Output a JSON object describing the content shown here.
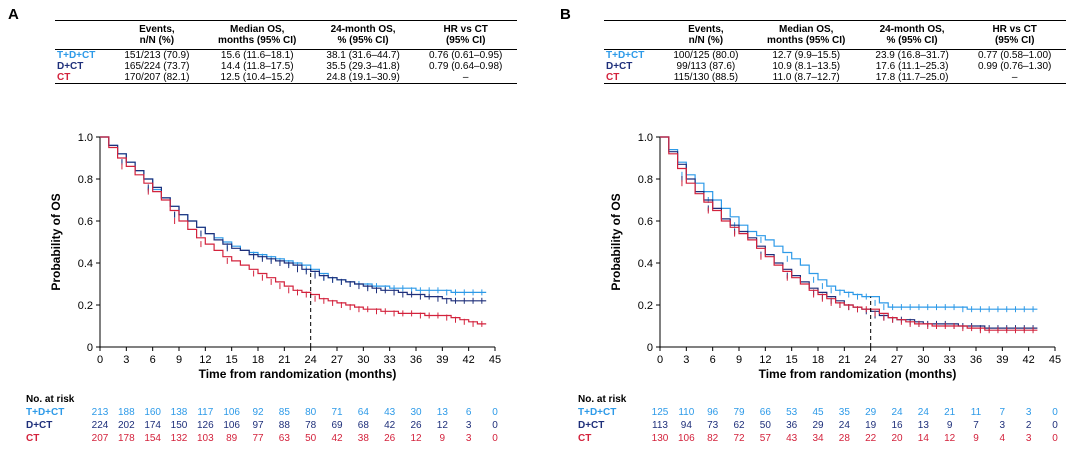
{
  "colors": {
    "tdct": "#2d9ae8",
    "dct": "#1e2f7a",
    "ct": "#d3223c"
  },
  "headers": [
    "",
    "Events,\nn/N (%)",
    "Median OS,\nmonths (95% CI)",
    "24-month OS,\n% (95% CI)",
    "HR vs CT\n(95% CI)"
  ],
  "risk_title": "No. at risk",
  "chart_data": [
    {
      "panel": "A",
      "type": "line",
      "xlabel": "Time from randomization (months)",
      "ylabel": "Probability of OS",
      "xlim": [
        0,
        45
      ],
      "ylim": [
        0,
        1.0
      ],
      "xticks": [
        0,
        3,
        6,
        9,
        12,
        15,
        18,
        21,
        24,
        27,
        30,
        33,
        36,
        39,
        42,
        45
      ],
      "yticks": [
        0,
        0.2,
        0.4,
        0.6,
        0.8,
        1.0
      ],
      "ytick_labels": [
        "0",
        "0.2",
        "0.4",
        "0.6",
        "0.8",
        "1.0"
      ],
      "reference_line_x": 24,
      "table": [
        {
          "arm": "T+D+CT",
          "color": "tdct",
          "events": "151/213 (70.9)",
          "median": "15.6 (11.6–18.1)",
          "os24": "38.1 (31.6–44.7)",
          "hr": "0.76 (0.61–0.95)"
        },
        {
          "arm": "D+CT",
          "color": "dct",
          "events": "165/224 (73.7)",
          "median": "14.4 (11.8–17.5)",
          "os24": "35.5 (29.3–41.8)",
          "hr": "0.79 (0.64–0.98)"
        },
        {
          "arm": "CT",
          "color": "ct",
          "events": "170/207 (82.1)",
          "median": "12.5 (10.4–15.2)",
          "os24": "24.8 (19.1–30.9)",
          "hr": "–"
        }
      ],
      "series": [
        {
          "name": "T+D+CT",
          "color": "tdct",
          "x": [
            0,
            1,
            2,
            3,
            4,
            5,
            6,
            7,
            8,
            9,
            10,
            11,
            12,
            13,
            14,
            15,
            16,
            17,
            18,
            19,
            20,
            21,
            22,
            23,
            24,
            25,
            26,
            27,
            28,
            29,
            30,
            31,
            32,
            33,
            34,
            35,
            36,
            37,
            38,
            39,
            40,
            41,
            42,
            43,
            44
          ],
          "y": [
            1.0,
            0.96,
            0.92,
            0.88,
            0.84,
            0.8,
            0.75,
            0.71,
            0.67,
            0.63,
            0.6,
            0.57,
            0.54,
            0.52,
            0.5,
            0.48,
            0.46,
            0.45,
            0.44,
            0.43,
            0.42,
            0.41,
            0.4,
            0.39,
            0.37,
            0.35,
            0.33,
            0.32,
            0.31,
            0.3,
            0.3,
            0.29,
            0.29,
            0.28,
            0.28,
            0.28,
            0.27,
            0.27,
            0.27,
            0.27,
            0.26,
            0.26,
            0.26,
            0.26,
            0.26
          ]
        },
        {
          "name": "D+CT",
          "color": "dct",
          "x": [
            0,
            1,
            2,
            3,
            4,
            5,
            6,
            7,
            8,
            9,
            10,
            11,
            12,
            13,
            14,
            15,
            16,
            17,
            18,
            19,
            20,
            21,
            22,
            23,
            24,
            25,
            26,
            27,
            28,
            29,
            30,
            31,
            32,
            33,
            34,
            35,
            36,
            37,
            38,
            39,
            40,
            41,
            42,
            43,
            44
          ],
          "y": [
            1.0,
            0.96,
            0.92,
            0.88,
            0.84,
            0.8,
            0.76,
            0.71,
            0.67,
            0.63,
            0.6,
            0.57,
            0.54,
            0.51,
            0.49,
            0.47,
            0.46,
            0.44,
            0.43,
            0.42,
            0.41,
            0.4,
            0.39,
            0.37,
            0.36,
            0.34,
            0.33,
            0.32,
            0.31,
            0.3,
            0.29,
            0.28,
            0.27,
            0.27,
            0.26,
            0.25,
            0.25,
            0.24,
            0.24,
            0.23,
            0.22,
            0.22,
            0.22,
            0.22,
            0.22
          ]
        },
        {
          "name": "CT",
          "color": "ct",
          "x": [
            0,
            1,
            2,
            3,
            4,
            5,
            6,
            7,
            8,
            9,
            10,
            11,
            12,
            13,
            14,
            15,
            16,
            17,
            18,
            19,
            20,
            21,
            22,
            23,
            24,
            25,
            26,
            27,
            28,
            29,
            30,
            31,
            32,
            33,
            34,
            35,
            36,
            37,
            38,
            39,
            40,
            41,
            42,
            43,
            44
          ],
          "y": [
            1.0,
            0.95,
            0.9,
            0.86,
            0.82,
            0.78,
            0.74,
            0.7,
            0.65,
            0.6,
            0.56,
            0.52,
            0.49,
            0.46,
            0.43,
            0.41,
            0.39,
            0.37,
            0.35,
            0.33,
            0.31,
            0.29,
            0.27,
            0.26,
            0.25,
            0.23,
            0.22,
            0.21,
            0.2,
            0.19,
            0.18,
            0.18,
            0.17,
            0.17,
            0.16,
            0.16,
            0.16,
            0.15,
            0.15,
            0.15,
            0.14,
            0.13,
            0.12,
            0.11,
            0.11
          ]
        }
      ],
      "risk_x": [
        0,
        3,
        6,
        9,
        12,
        15,
        18,
        21,
        24,
        27,
        30,
        33,
        36,
        39,
        42,
        45
      ],
      "risk": [
        {
          "arm": "T+D+CT",
          "color": "tdct",
          "values": [
            "213",
            "188",
            "160",
            "138",
            "117",
            "106",
            "92",
            "85",
            "80",
            "71",
            "64",
            "43",
            "30",
            "13",
            "6",
            "0"
          ]
        },
        {
          "arm": "D+CT",
          "color": "dct",
          "values": [
            "224",
            "202",
            "174",
            "150",
            "126",
            "106",
            "97",
            "88",
            "78",
            "69",
            "68",
            "42",
            "26",
            "12",
            "3",
            "0"
          ]
        },
        {
          "arm": "CT",
          "color": "ct",
          "values": [
            "207",
            "178",
            "154",
            "132",
            "103",
            "89",
            "77",
            "63",
            "50",
            "42",
            "38",
            "26",
            "12",
            "9",
            "3",
            "0"
          ]
        }
      ]
    },
    {
      "panel": "B",
      "type": "line",
      "xlabel": "Time from randomization (months)",
      "ylabel": "Probability of OS",
      "xlim": [
        0,
        45
      ],
      "ylim": [
        0,
        1.0
      ],
      "xticks": [
        0,
        3,
        6,
        9,
        12,
        15,
        18,
        21,
        24,
        27,
        30,
        33,
        36,
        39,
        42,
        45
      ],
      "yticks": [
        0,
        0.2,
        0.4,
        0.6,
        0.8,
        1.0
      ],
      "ytick_labels": [
        "0",
        "0.2",
        "0.4",
        "0.6",
        "0.8",
        "1.0"
      ],
      "reference_line_x": 24,
      "table": [
        {
          "arm": "T+D+CT",
          "color": "tdct",
          "events": "100/125 (80.0)",
          "median": "12.7 (9.9–15.5)",
          "os24": "23.9 (16.8–31.7)",
          "hr": "0.77 (0.58–1.00)"
        },
        {
          "arm": "D+CT",
          "color": "dct",
          "events": "99/113 (87.6)",
          "median": "10.9 (8.1–13.5)",
          "os24": "17.6 (11.1–25.3)",
          "hr": "0.99 (0.76–1.30)"
        },
        {
          "arm": "CT",
          "color": "ct",
          "events": "115/130 (88.5)",
          "median": "11.0 (8.7–12.7)",
          "os24": "17.8 (11.7–25.0)",
          "hr": "–"
        }
      ],
      "series": [
        {
          "name": "T+D+CT",
          "color": "tdct",
          "x": [
            0,
            1,
            2,
            3,
            4,
            5,
            6,
            7,
            8,
            9,
            10,
            11,
            12,
            13,
            14,
            15,
            16,
            17,
            18,
            19,
            20,
            21,
            22,
            23,
            24,
            25,
            26,
            27,
            28,
            29,
            30,
            31,
            32,
            33,
            34,
            35,
            36,
            37,
            38,
            39,
            40,
            41,
            42,
            43
          ],
          "y": [
            1.0,
            0.94,
            0.88,
            0.82,
            0.78,
            0.74,
            0.7,
            0.66,
            0.62,
            0.58,
            0.55,
            0.53,
            0.51,
            0.48,
            0.45,
            0.42,
            0.39,
            0.35,
            0.32,
            0.29,
            0.27,
            0.26,
            0.25,
            0.24,
            0.24,
            0.21,
            0.19,
            0.19,
            0.19,
            0.19,
            0.19,
            0.19,
            0.19,
            0.19,
            0.19,
            0.18,
            0.18,
            0.18,
            0.18,
            0.18,
            0.18,
            0.18,
            0.18,
            0.18
          ]
        },
        {
          "name": "D+CT",
          "color": "dct",
          "x": [
            0,
            1,
            2,
            3,
            4,
            5,
            6,
            7,
            8,
            9,
            10,
            11,
            12,
            13,
            14,
            15,
            16,
            17,
            18,
            19,
            20,
            21,
            22,
            23,
            24,
            25,
            26,
            27,
            28,
            29,
            30,
            31,
            32,
            33,
            34,
            35,
            36,
            37,
            38,
            39,
            40,
            41,
            42,
            43
          ],
          "y": [
            1.0,
            0.93,
            0.87,
            0.8,
            0.74,
            0.7,
            0.66,
            0.61,
            0.58,
            0.55,
            0.52,
            0.48,
            0.44,
            0.4,
            0.37,
            0.34,
            0.31,
            0.28,
            0.26,
            0.24,
            0.22,
            0.2,
            0.19,
            0.18,
            0.17,
            0.15,
            0.14,
            0.13,
            0.13,
            0.12,
            0.11,
            0.11,
            0.11,
            0.11,
            0.1,
            0.1,
            0.1,
            0.09,
            0.09,
            0.09,
            0.09,
            0.09,
            0.09,
            0.09
          ]
        },
        {
          "name": "CT",
          "color": "ct",
          "x": [
            0,
            1,
            2,
            3,
            4,
            5,
            6,
            7,
            8,
            9,
            10,
            11,
            12,
            13,
            14,
            15,
            16,
            17,
            18,
            19,
            20,
            21,
            22,
            23,
            24,
            25,
            26,
            27,
            28,
            29,
            30,
            31,
            32,
            33,
            34,
            35,
            36,
            37,
            38,
            39,
            40,
            41,
            42,
            43
          ],
          "y": [
            1.0,
            0.92,
            0.85,
            0.78,
            0.73,
            0.69,
            0.65,
            0.6,
            0.57,
            0.54,
            0.51,
            0.47,
            0.43,
            0.39,
            0.36,
            0.33,
            0.3,
            0.27,
            0.25,
            0.23,
            0.21,
            0.2,
            0.19,
            0.18,
            0.18,
            0.16,
            0.14,
            0.13,
            0.12,
            0.11,
            0.11,
            0.1,
            0.1,
            0.1,
            0.1,
            0.09,
            0.09,
            0.08,
            0.08,
            0.08,
            0.08,
            0.08,
            0.08,
            0.08
          ]
        }
      ],
      "risk_x": [
        0,
        3,
        6,
        9,
        12,
        15,
        18,
        21,
        24,
        27,
        30,
        33,
        36,
        39,
        42,
        45
      ],
      "risk": [
        {
          "arm": "T+D+CT",
          "color": "tdct",
          "values": [
            "125",
            "110",
            "96",
            "79",
            "66",
            "53",
            "45",
            "35",
            "29",
            "24",
            "24",
            "21",
            "11",
            "7",
            "3",
            "0"
          ]
        },
        {
          "arm": "D+CT",
          "color": "dct",
          "values": [
            "113",
            "94",
            "73",
            "62",
            "50",
            "36",
            "29",
            "24",
            "19",
            "16",
            "13",
            "9",
            "7",
            "3",
            "2",
            "0"
          ]
        },
        {
          "arm": "CT",
          "color": "ct",
          "values": [
            "130",
            "106",
            "82",
            "72",
            "57",
            "43",
            "34",
            "28",
            "22",
            "20",
            "14",
            "12",
            "9",
            "4",
            "3",
            "0"
          ]
        }
      ]
    }
  ]
}
